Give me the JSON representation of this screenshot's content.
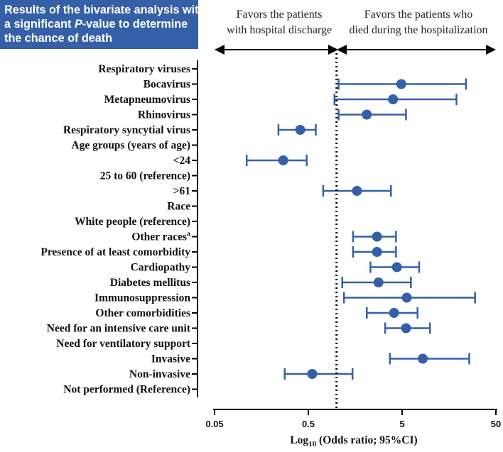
{
  "title_lines": [
    "Results of the bivariate analysis with",
    "a significant ",
    "P",
    "-value to determine",
    "the chance of death"
  ],
  "headers": {
    "left_line1": "Favors the patients",
    "left_line2": "with hospital discharge",
    "right_line1": "Favors the patients who",
    "right_line2": "died during the hospitalization"
  },
  "colors": {
    "marker": "#3560a8",
    "title_bg": "#3560a8",
    "axis": "#000000"
  },
  "chart_data": {
    "type": "forest",
    "scale": "log10",
    "xlim": [
      0.05,
      50
    ],
    "reference_line": 1,
    "xticks": [
      0.05,
      0.5,
      5,
      50
    ],
    "xtick_labels": [
      "0.05",
      "0.5",
      "5",
      "50"
    ],
    "xlabel_main": "Log",
    "xlabel_sub": "10",
    "xlabel_rest": " (Odds ratio; 95%CI)",
    "rows": [
      {
        "label": "Respiratory viruses",
        "or": null,
        "lo": null,
        "hi": null
      },
      {
        "label": "Bocavirus",
        "or": 4.9,
        "lo": 1.05,
        "hi": 24
      },
      {
        "label": "Metapneumovirus",
        "or": 4.0,
        "lo": 0.95,
        "hi": 19
      },
      {
        "label": "Rhinovirus",
        "or": 2.1,
        "lo": 1.05,
        "hi": 5.5
      },
      {
        "label": "Respiratory syncytial virus",
        "or": 0.41,
        "lo": 0.24,
        "hi": 0.6
      },
      {
        "label": "Age groups (years of age)",
        "or": null,
        "lo": null,
        "hi": null
      },
      {
        "label": "<24",
        "or": 0.27,
        "lo": 0.11,
        "hi": 0.48
      },
      {
        "label": "25 to 60 (reference)",
        "or": null,
        "lo": null,
        "hi": null
      },
      {
        "label": ">61",
        "or": 1.65,
        "lo": 0.72,
        "hi": 3.8
      },
      {
        "label": "Race",
        "or": null,
        "lo": null,
        "hi": null
      },
      {
        "label": "White people (reference)",
        "or": null,
        "lo": null,
        "hi": null
      },
      {
        "label": "Other races",
        "sup": "a",
        "or": 2.7,
        "lo": 1.5,
        "hi": 4.3
      },
      {
        "label": "Presence of at least comorbidity",
        "or": 2.7,
        "lo": 1.5,
        "hi": 4.3
      },
      {
        "label": "Cardiopathy",
        "or": 4.4,
        "lo": 2.3,
        "hi": 7.6
      },
      {
        "label": "Diabetes mellitus",
        "or": 2.8,
        "lo": 1.15,
        "hi": 6.2
      },
      {
        "label": "Immunosuppression",
        "or": 5.6,
        "lo": 1.2,
        "hi": 30
      },
      {
        "label": "Other comorbidities",
        "or": 4.1,
        "lo": 2.1,
        "hi": 7.3
      },
      {
        "label": "Need for an intensive care unit",
        "or": 5.5,
        "lo": 3.3,
        "hi": 9.9
      },
      {
        "label": "Need for ventilatory support",
        "or": null,
        "lo": null,
        "hi": null
      },
      {
        "label": "Invasive",
        "or": 8.3,
        "lo": 3.7,
        "hi": 26
      },
      {
        "label": "Non-invasive",
        "or": 0.55,
        "lo": 0.28,
        "hi": 1.48
      },
      {
        "label": "Not performed (Reference)",
        "or": null,
        "lo": null,
        "hi": null
      }
    ]
  }
}
